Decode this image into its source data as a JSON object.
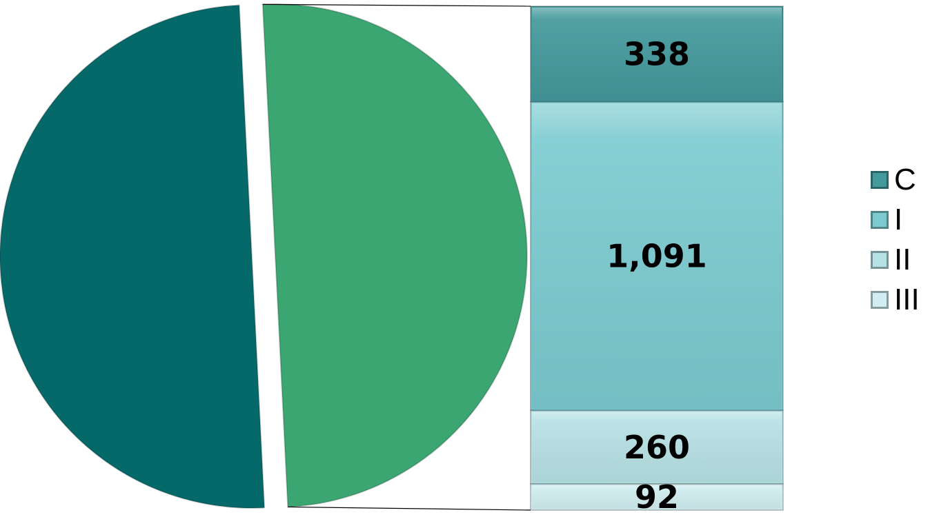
{
  "chart_data": {
    "type": "bar-of-pie",
    "pie": {
      "slices": [
        {
          "value": 1781,
          "color": "#05696A",
          "role": "remainder"
        },
        {
          "value": 1781,
          "color": "#3BA672",
          "role": "breakout"
        }
      ]
    },
    "bar": {
      "categories": [
        "C",
        "I",
        "II",
        "III"
      ],
      "values": [
        338,
        1091,
        260,
        92
      ],
      "value_labels": [
        "338",
        "1,091",
        "260",
        "92"
      ],
      "colors": [
        "#44999C",
        "#7CCBD0",
        "#B7E2E5",
        "#D0EEF1"
      ]
    },
    "legend": {
      "position": "right",
      "items": [
        {
          "label": "C",
          "color": "#44999C"
        },
        {
          "label": "I",
          "color": "#7CCBD0"
        },
        {
          "label": "II",
          "color": "#B7E2E5"
        },
        {
          "label": "III",
          "color": "#D0EEF1"
        }
      ]
    }
  }
}
